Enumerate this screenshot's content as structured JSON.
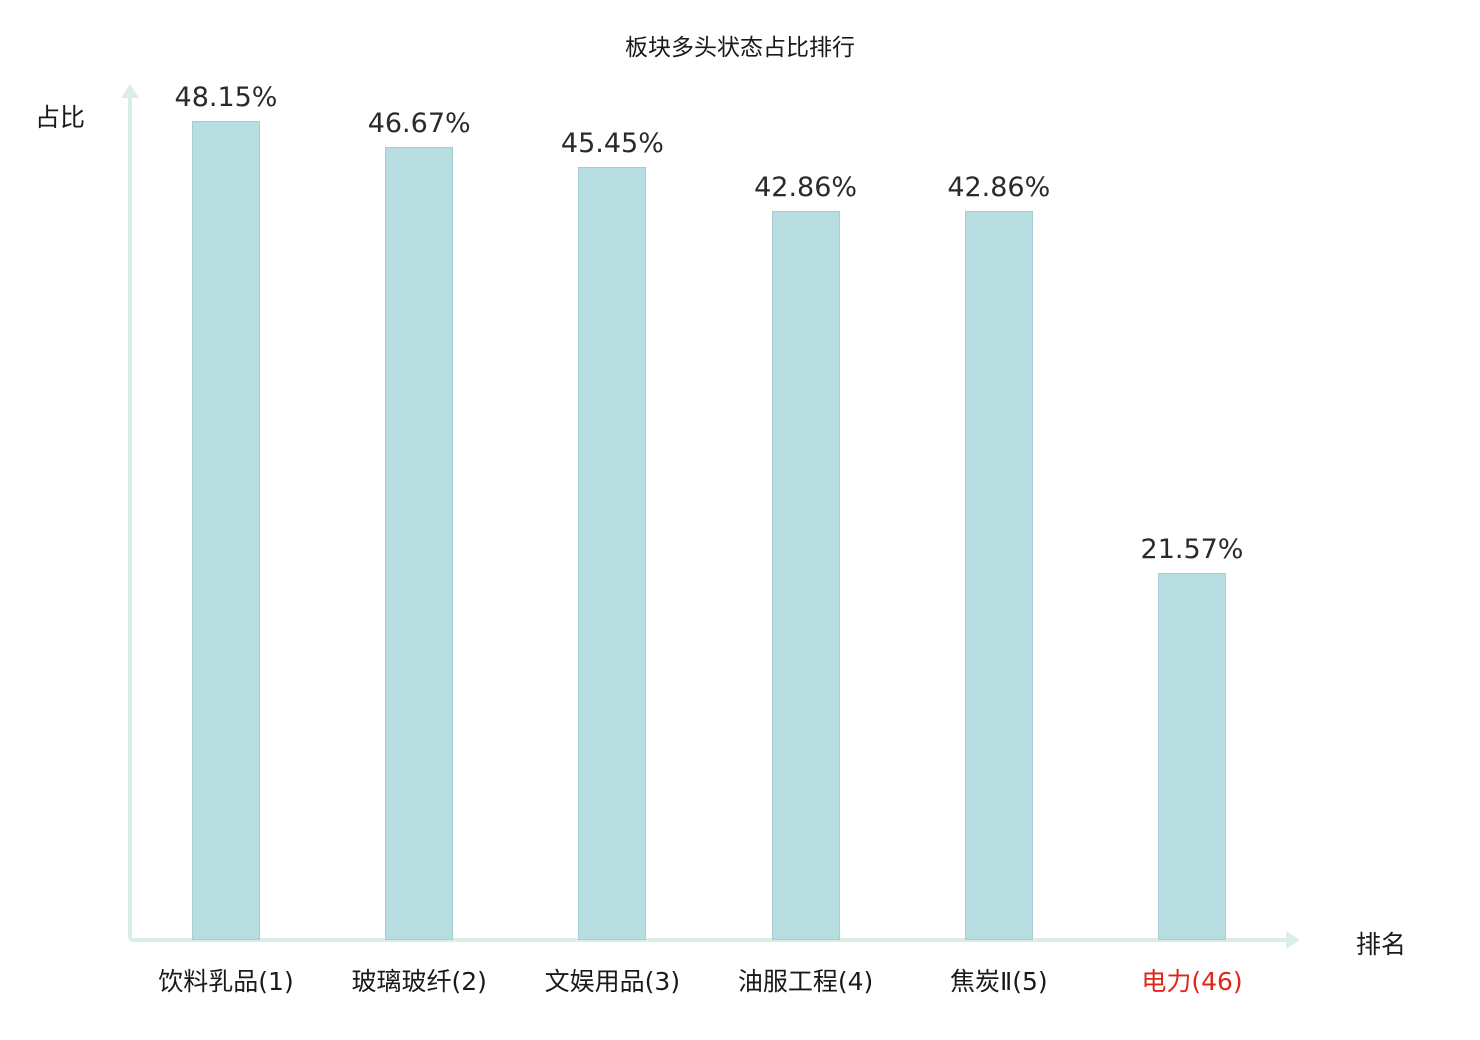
{
  "title": "板块多头状态占比排行",
  "axes": {
    "y_label": "占比",
    "x_label": "排名"
  },
  "colors": {
    "bar_fill": "#b7dde1",
    "bar_border": "#a3ced4",
    "axis": "#d9efe5",
    "text": "#262626",
    "highlight": "#e12619"
  },
  "chart_data": {
    "type": "bar",
    "title": "板块多头状态占比排行",
    "xlabel": "排名",
    "ylabel": "占比",
    "ylim": [
      0,
      50
    ],
    "grid": false,
    "legend": "none",
    "categories": [
      "饮料乳品(1)",
      "玻璃玻纤(2)",
      "文娱用品(3)",
      "油服工程(4)",
      "焦炭Ⅱ(5)",
      "电力(46)"
    ],
    "values": [
      48.15,
      46.67,
      45.45,
      42.86,
      42.86,
      21.57
    ],
    "value_labels": [
      "48.15%",
      "46.67%",
      "45.45%",
      "42.86%",
      "42.86%",
      "21.57%"
    ],
    "highlight_index": 5
  }
}
